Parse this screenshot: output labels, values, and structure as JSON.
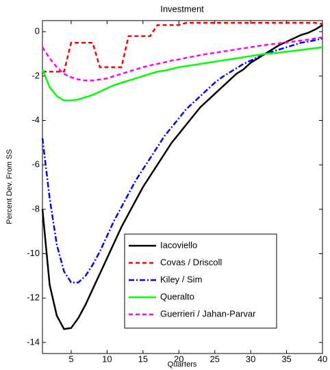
{
  "chart_data": {
    "type": "line",
    "title": "Investment",
    "x_label": "Quarters",
    "y_label": "Percent Dev. From SS",
    "x": [
      1,
      2,
      3,
      4,
      5,
      6,
      7,
      8,
      9,
      10,
      11,
      12,
      13,
      14,
      15,
      16,
      17,
      18,
      19,
      20,
      21,
      22,
      23,
      24,
      25,
      26,
      27,
      28,
      29,
      30,
      31,
      32,
      33,
      34,
      35,
      36,
      37,
      38,
      39,
      40
    ],
    "xlim": [
      1,
      40
    ],
    "xticks": [
      5,
      10,
      15,
      20,
      25,
      30,
      35,
      40
    ],
    "ylim": [
      -14.5,
      0.5
    ],
    "yticks": [
      -14,
      -12,
      -10,
      -8,
      -6,
      -4,
      -2,
      0
    ],
    "legend": "lower right",
    "series": [
      {
        "name": "Iacoviello",
        "color": "#000000",
        "dash": "solid",
        "values": [
          -8,
          -11.4,
          -12.8,
          -13.4,
          -13.35,
          -12.9,
          -12.3,
          -11.6,
          -10.9,
          -10.2,
          -9.5,
          -8.8,
          -8.2,
          -7.6,
          -7.0,
          -6.5,
          -6.0,
          -5.5,
          -5.0,
          -4.6,
          -4.2,
          -3.8,
          -3.4,
          -3.1,
          -2.8,
          -2.5,
          -2.2,
          -1.9,
          -1.7,
          -1.4,
          -1.2,
          -1.0,
          -0.8,
          -0.6,
          -0.45,
          -0.3,
          -0.15,
          -0.05,
          0.1,
          0.3
        ]
      },
      {
        "name": "Covas / Driscoll",
        "color": "#ff0000",
        "dash": "dashed",
        "values": [
          -1.8,
          -1.8,
          -1.8,
          -1.8,
          -0.5,
          -0.5,
          -0.5,
          -0.5,
          -1.6,
          -1.6,
          -1.6,
          -1.6,
          -0.2,
          -0.2,
          -0.2,
          -0.2,
          0.3,
          0.3,
          0.3,
          0.3,
          0.4,
          0.4,
          0.4,
          0.4,
          0.4,
          0.4,
          0.4,
          0.4,
          0.4,
          0.4,
          0.4,
          0.4,
          0.4,
          0.4,
          0.4,
          0.4,
          0.4,
          0.4,
          0.4,
          0.35
        ]
      },
      {
        "name": "Kiley / Sim",
        "color": "#0000ff",
        "dash": "dashdot",
        "values": [
          -4.8,
          -7.5,
          -9.6,
          -10.8,
          -11.3,
          -11.3,
          -11.0,
          -10.5,
          -9.9,
          -9.2,
          -8.5,
          -7.9,
          -7.3,
          -6.7,
          -6.2,
          -5.7,
          -5.2,
          -4.7,
          -4.3,
          -3.9,
          -3.5,
          -3.2,
          -2.9,
          -2.6,
          -2.3,
          -2.05,
          -1.85,
          -1.65,
          -1.45,
          -1.3,
          -1.15,
          -1.0,
          -0.9,
          -0.8,
          -0.7,
          -0.6,
          -0.5,
          -0.45,
          -0.38,
          -0.3
        ]
      },
      {
        "name": "Queralto",
        "color": "#00ff00",
        "dash": "solid",
        "values": [
          -1.7,
          -2.5,
          -2.9,
          -3.1,
          -3.1,
          -3.05,
          -2.95,
          -2.85,
          -2.7,
          -2.55,
          -2.4,
          -2.3,
          -2.2,
          -2.1,
          -2.0,
          -1.9,
          -1.8,
          -1.75,
          -1.68,
          -1.6,
          -1.55,
          -1.5,
          -1.45,
          -1.4,
          -1.35,
          -1.3,
          -1.25,
          -1.2,
          -1.15,
          -1.1,
          -1.05,
          -1.0,
          -0.97,
          -0.94,
          -0.9,
          -0.86,
          -0.82,
          -0.78,
          -0.74,
          -0.7
        ]
      },
      {
        "name": "Guerrieri / Jahan-Parvar",
        "color": "#ff00ff",
        "dash": "dashed",
        "values": [
          -0.7,
          -1.2,
          -1.6,
          -1.9,
          -2.05,
          -2.15,
          -2.2,
          -2.2,
          -2.15,
          -2.1,
          -2.0,
          -1.9,
          -1.8,
          -1.7,
          -1.6,
          -1.52,
          -1.45,
          -1.38,
          -1.3,
          -1.25,
          -1.18,
          -1.12,
          -1.06,
          -1.0,
          -0.95,
          -0.9,
          -0.85,
          -0.8,
          -0.75,
          -0.7,
          -0.65,
          -0.6,
          -0.56,
          -0.52,
          -0.48,
          -0.44,
          -0.4,
          -0.36,
          -0.3,
          -0.25
        ]
      }
    ]
  }
}
